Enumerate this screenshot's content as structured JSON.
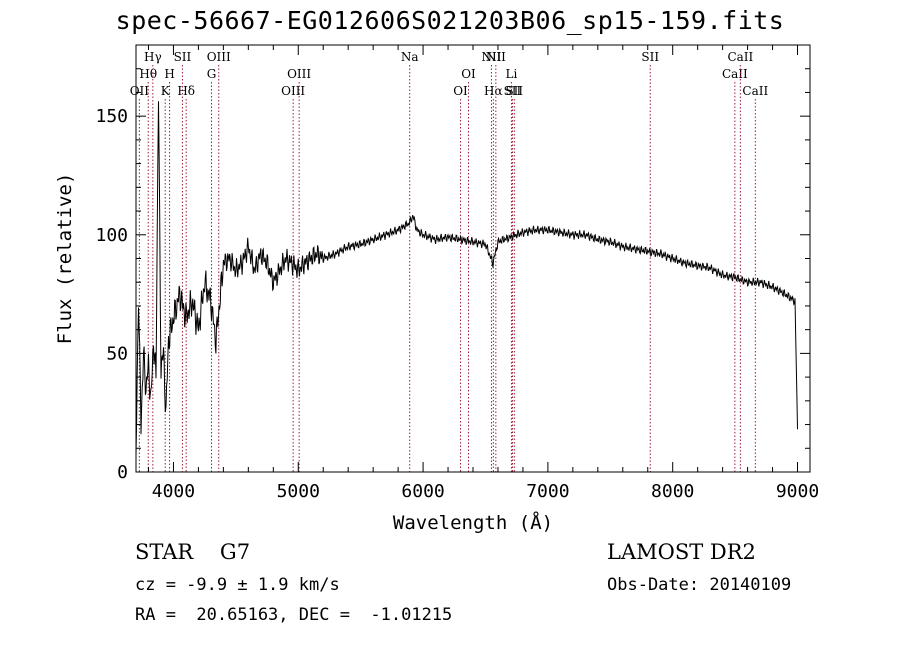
{
  "chart_data": {
    "type": "line",
    "title": "spec-56667-EG012606S021203B06_sp15-159.fits",
    "xlabel": "Wavelength (Å)",
    "ylabel": "Flux (relative)",
    "xlim": [
      3700,
      9100
    ],
    "ylim": [
      0,
      180
    ],
    "xticks": [
      4000,
      5000,
      6000,
      7000,
      8000,
      9000
    ],
    "yticks": [
      0,
      50,
      100,
      150
    ],
    "series": [
      {
        "name": "spectrum",
        "x": [
          3700,
          3720,
          3740,
          3760,
          3780,
          3800,
          3820,
          3840,
          3860,
          3880,
          3900,
          3920,
          3940,
          3960,
          3980,
          4000,
          4050,
          4100,
          4150,
          4200,
          4250,
          4300,
          4340,
          4400,
          4450,
          4500,
          4550,
          4600,
          4650,
          4700,
          4750,
          4800,
          4850,
          4900,
          4950,
          5000,
          5050,
          5100,
          5150,
          5200,
          5300,
          5400,
          5500,
          5600,
          5700,
          5800,
          5890,
          5920,
          5950,
          6000,
          6100,
          6200,
          6300,
          6400,
          6500,
          6560,
          6600,
          6700,
          6800,
          6900,
          7000,
          7100,
          7200,
          7300,
          7400,
          7500,
          7600,
          7700,
          7800,
          7900,
          8000,
          8100,
          8200,
          8300,
          8400,
          8500,
          8600,
          8700,
          8800,
          8900,
          8980,
          9000
        ],
        "y": [
          5,
          75,
          20,
          50,
          35,
          45,
          30,
          55,
          40,
          160,
          45,
          50,
          25,
          55,
          60,
          65,
          75,
          65,
          72,
          60,
          80,
          72,
          55,
          88,
          90,
          85,
          88,
          95,
          85,
          92,
          88,
          80,
          85,
          90,
          88,
          85,
          88,
          90,
          92,
          90,
          92,
          95,
          96,
          98,
          100,
          102,
          105,
          108,
          102,
          100,
          98,
          99,
          98,
          97,
          96,
          88,
          97,
          99,
          101,
          102,
          102,
          101,
          100,
          100,
          98,
          97,
          95,
          94,
          93,
          92,
          90,
          88,
          87,
          86,
          83,
          82,
          80,
          80,
          78,
          75,
          72,
          18
        ]
      }
    ],
    "line_markers": [
      {
        "label": "OII",
        "x": 3727,
        "row": 3
      },
      {
        "label": "Hθ",
        "x": 3798,
        "row": 2
      },
      {
        "label": "Hγ",
        "x": 3835,
        "row": 1
      },
      {
        "label": "K",
        "x": 3934,
        "row": 3
      },
      {
        "label": "H",
        "x": 3969,
        "row": 2
      },
      {
        "label": "SII",
        "x": 4072,
        "row": 1
      },
      {
        "label": "Hδ",
        "x": 4102,
        "row": 3
      },
      {
        "label": "G",
        "x": 4305,
        "row": 2
      },
      {
        "label": "OIII",
        "x": 4363,
        "row": 1
      },
      {
        "label": "OIII",
        "x": 4959,
        "row": 3
      },
      {
        "label": "OIII",
        "x": 5007,
        "row": 2
      },
      {
        "label": "Na",
        "x": 5893,
        "row": 1
      },
      {
        "label": "OI",
        "x": 6300,
        "row": 3
      },
      {
        "label": "OI",
        "x": 6364,
        "row": 2
      },
      {
        "label": "NII",
        "x": 6548,
        "row": 1
      },
      {
        "label": "Hα",
        "x": 6563,
        "row": 3
      },
      {
        "label": "NII",
        "x": 6583,
        "row": 1
      },
      {
        "label": "Li",
        "x": 6708,
        "row": 2
      },
      {
        "label": "SII",
        "x": 6716,
        "row": 3
      },
      {
        "label": "SII",
        "x": 6731,
        "row": 3
      },
      {
        "label": "SII",
        "x": 7820,
        "row": 1
      },
      {
        "label": "CaII",
        "x": 8498,
        "row": 2
      },
      {
        "label": "CaII",
        "x": 8542,
        "row": 1
      },
      {
        "label": "CaII",
        "x": 8662,
        "row": 3
      }
    ]
  },
  "info": {
    "object_class": "STAR    G7",
    "survey": "LAMOST DR2",
    "redshift": "cz = -9.9 ± 1.9 km/s",
    "obs_date": "Obs-Date: 20140109",
    "coordinates": "RA =  20.65163, DEC =  -1.01215"
  },
  "colors": {
    "axis": "#000000",
    "spectrum": "#000000",
    "marker_line": "#a0203a"
  }
}
